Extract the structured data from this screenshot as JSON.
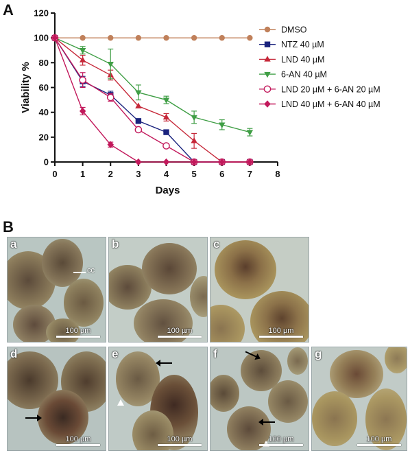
{
  "panels": {
    "a_letter": "A",
    "b_letter": "B"
  },
  "chart_data": {
    "type": "line",
    "xlabel": "Days",
    "ylabel": "Viability %",
    "xlim": [
      0,
      8
    ],
    "ylim": [
      0,
      120
    ],
    "xticks": [
      0,
      1,
      2,
      3,
      4,
      5,
      6,
      7,
      8
    ],
    "yticks": [
      0,
      20,
      40,
      60,
      80,
      100,
      120
    ],
    "grid": false,
    "legend_position": "right",
    "series": [
      {
        "name": "DMSO",
        "color": "#c0805a",
        "marker": "circle-filled",
        "x": [
          0,
          1,
          2,
          3,
          4,
          5,
          6,
          7
        ],
        "y": [
          100,
          100,
          100,
          100,
          100,
          100,
          100,
          100
        ],
        "err": [
          0,
          0,
          0,
          0,
          0,
          0,
          0,
          0
        ]
      },
      {
        "name": "NTZ 40 µM",
        "color": "#1a237e",
        "marker": "square",
        "x": [
          0,
          1,
          2,
          3,
          4,
          5,
          6,
          7
        ],
        "y": [
          100,
          65,
          54,
          33,
          24,
          0,
          0,
          0
        ],
        "err": [
          0,
          4,
          3,
          0,
          0,
          0,
          0,
          0
        ]
      },
      {
        "name": "LND 40 µM",
        "color": "#c62839",
        "marker": "triangle-up",
        "x": [
          0,
          1,
          2,
          3,
          4,
          5,
          6,
          7
        ],
        "y": [
          100,
          82,
          70,
          45,
          36,
          17,
          0,
          0
        ],
        "err": [
          0,
          4,
          4,
          0,
          3,
          6,
          0,
          0
        ]
      },
      {
        "name": "6-AN 40 µM",
        "color": "#3f9e45",
        "marker": "triangle-down",
        "x": [
          0,
          1,
          2,
          3,
          4,
          5,
          6,
          7
        ],
        "y": [
          100,
          90,
          79,
          56,
          50,
          36,
          30,
          24
        ],
        "err": [
          0,
          3,
          12,
          6,
          3,
          5,
          4,
          3
        ]
      },
      {
        "name": "LND 20 µM + 6-AN 20 µM",
        "color": "#c2185b",
        "marker": "circle-open",
        "x": [
          0,
          1,
          2,
          3,
          4,
          5,
          6,
          7
        ],
        "y": [
          100,
          66,
          52,
          26,
          13,
          0,
          0,
          0
        ],
        "err": [
          0,
          6,
          3,
          0,
          0,
          0,
          0,
          0
        ]
      },
      {
        "name": "LND 40 µM + 6-AN 40 µM",
        "color": "#c2185b",
        "marker": "diamond",
        "x": [
          0,
          1,
          2,
          3,
          4,
          5,
          6,
          7
        ],
        "y": [
          100,
          41,
          14,
          0,
          0,
          0,
          0,
          0
        ],
        "err": [
          0,
          3,
          2,
          0,
          0,
          0,
          0,
          0
        ]
      }
    ]
  },
  "micrographs": [
    {
      "letter": "a",
      "scale": "100 µm",
      "annotation": "cc"
    },
    {
      "letter": "b",
      "scale": "100 µm"
    },
    {
      "letter": "c",
      "scale": "100 µm"
    },
    {
      "letter": "d",
      "scale": "100 µm"
    },
    {
      "letter": "e",
      "scale": "100 µm"
    },
    {
      "letter": "f",
      "scale": "100 µm"
    },
    {
      "letter": "g",
      "scale": "100 µm"
    }
  ]
}
